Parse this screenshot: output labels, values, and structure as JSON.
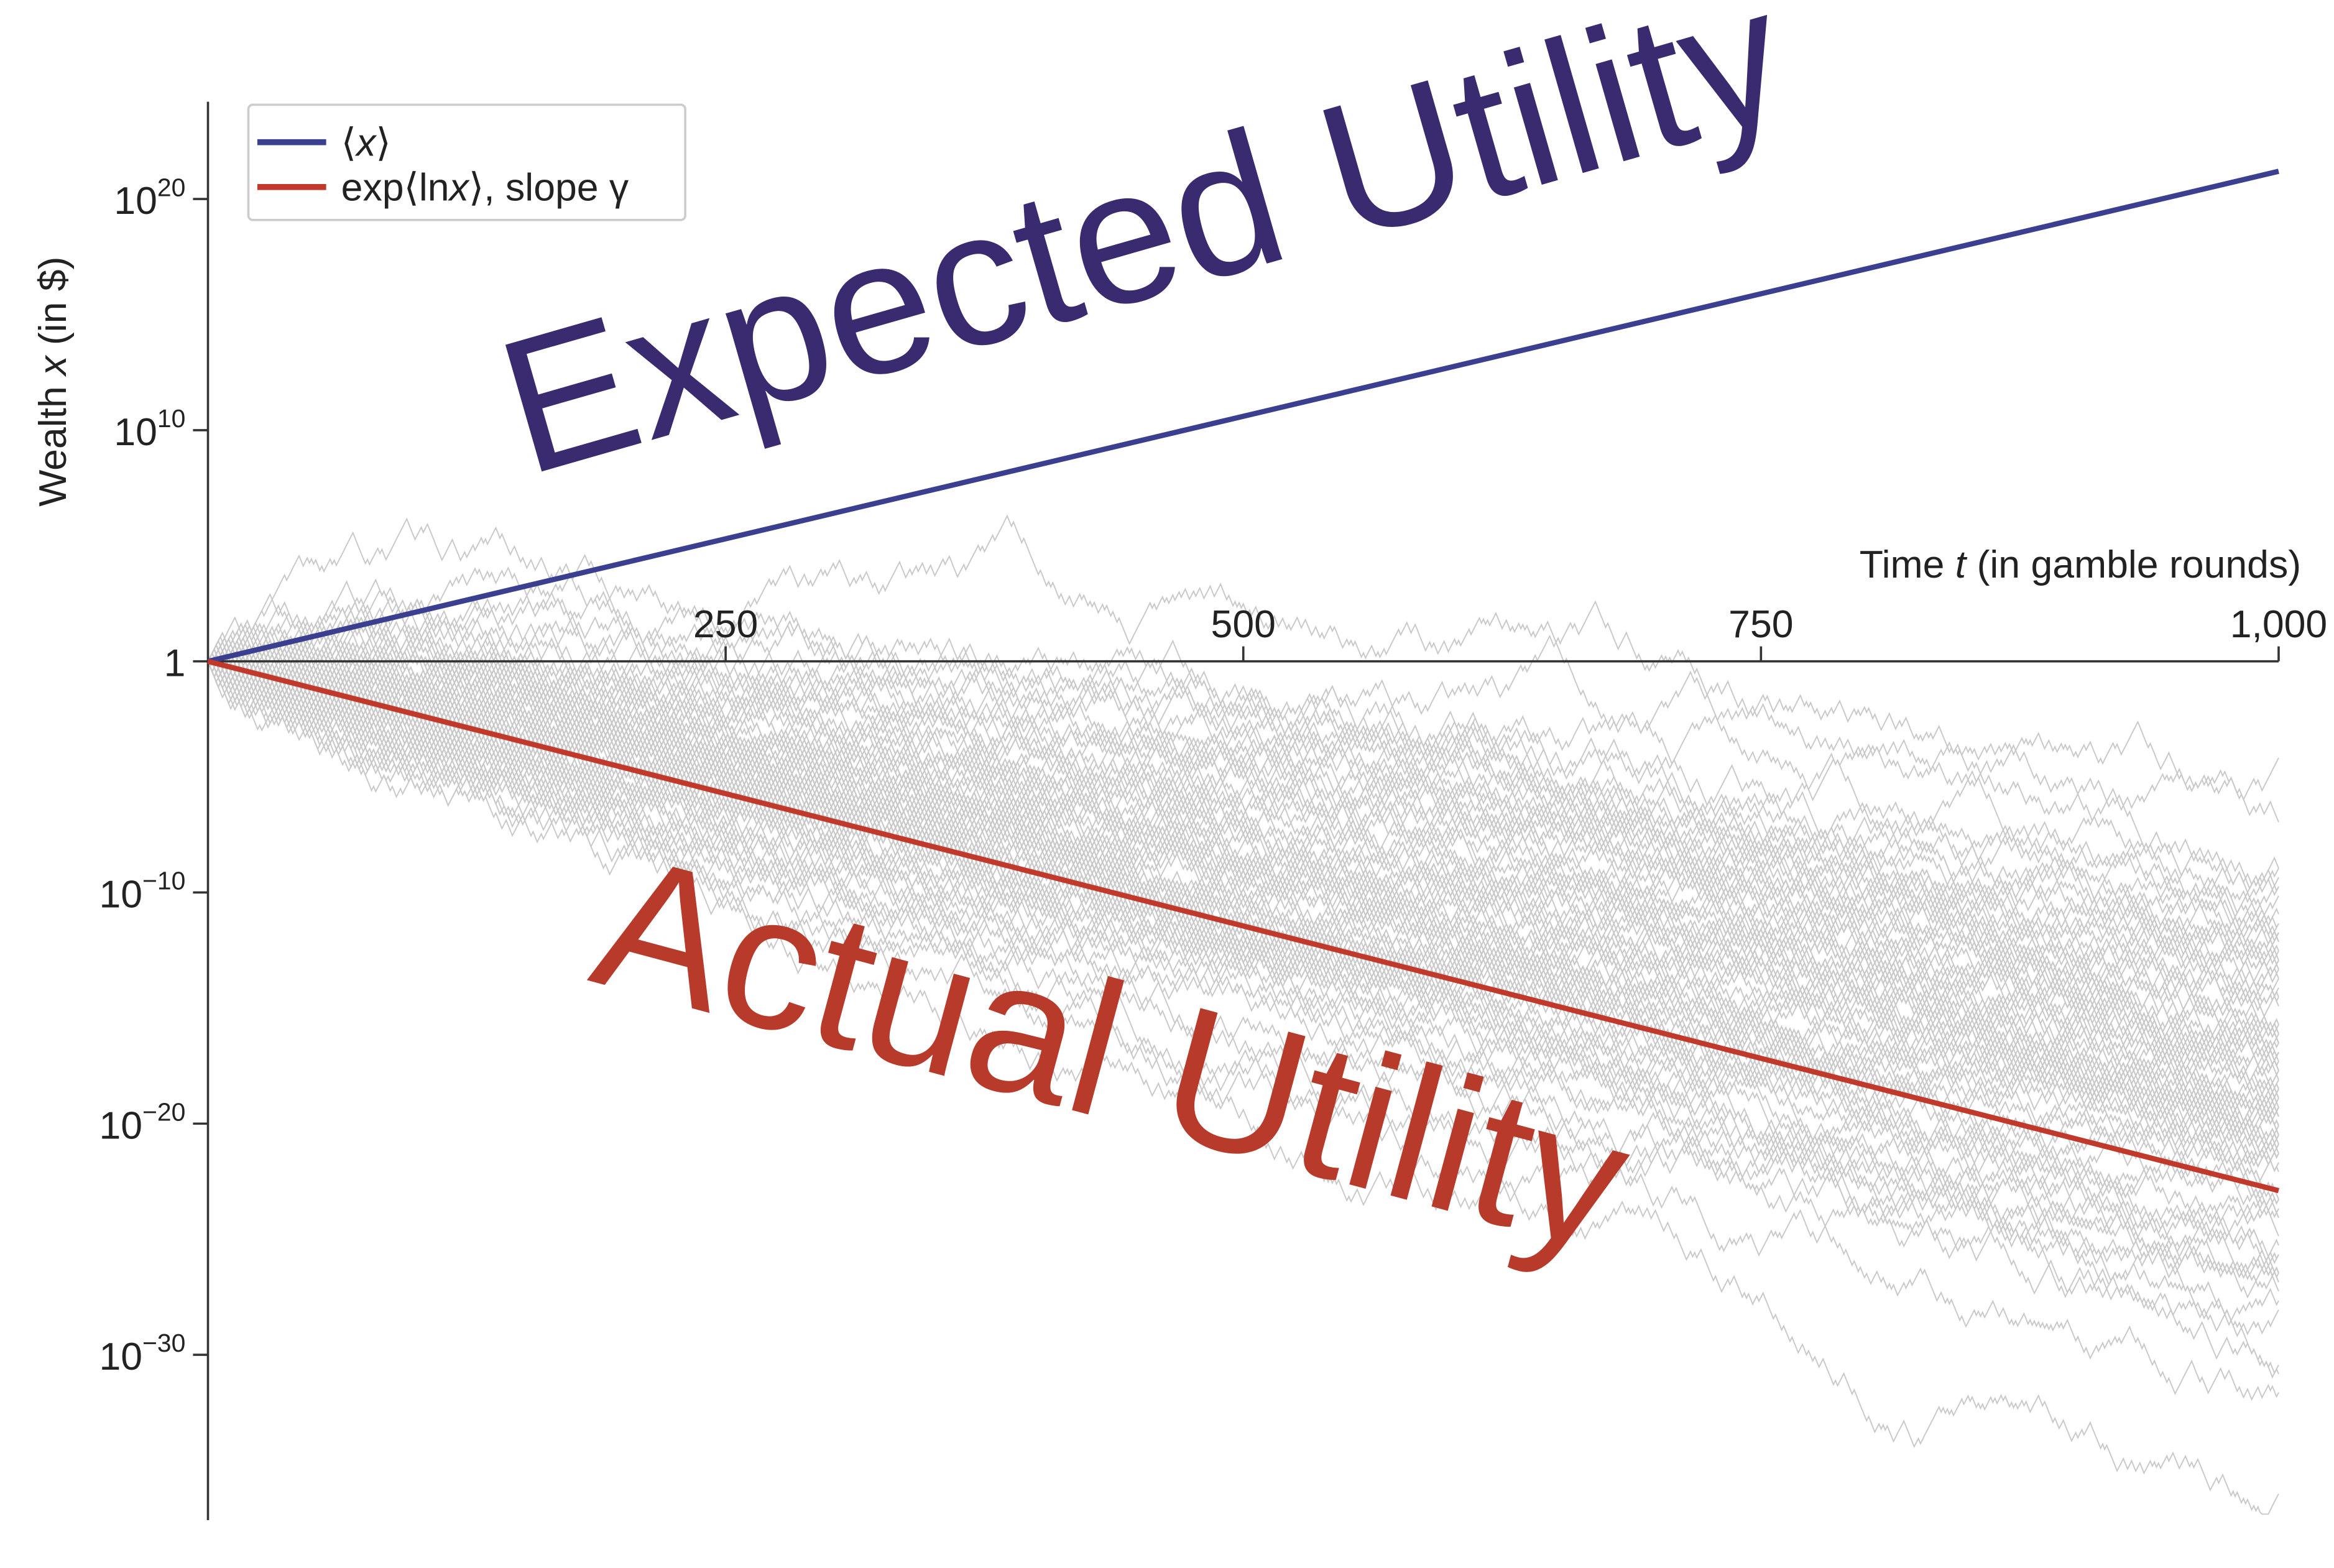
{
  "chart_data": {
    "type": "line",
    "xlabel_prefix": "Time ",
    "xlabel_var": "t",
    "xlabel_suffix": " (in gamble rounds)",
    "ylabel_prefix": "Wealth ",
    "ylabel_var": "x",
    "ylabel_suffix": " (in $)",
    "x_ticks": [
      250,
      500,
      750,
      1000
    ],
    "x_tick_labels": [
      "250",
      "500",
      "750",
      "1,000"
    ],
    "xlim": [
      0,
      1000
    ],
    "y_scale": "log",
    "ylim_log10": [
      -37,
      24
    ],
    "y_ticks_log10": [
      20,
      10,
      0,
      -10,
      -20,
      -30
    ],
    "y_tick_labels": [
      {
        "base": "10",
        "exp": "20"
      },
      {
        "base": "10",
        "exp": "10"
      },
      {
        "base": "1",
        "exp": ""
      },
      {
        "base": "10",
        "exp": "−10"
      },
      {
        "base": "10",
        "exp": "−20"
      },
      {
        "base": "10",
        "exp": "−30"
      }
    ],
    "legend_position": "top-left",
    "series": [
      {
        "name": "⟨x⟩",
        "color": "#3b3f8f",
        "x": [
          0,
          1000
        ],
        "y_log10": [
          0,
          21.2
        ]
      },
      {
        "name": "exp⟨lnx⟩, slope γ",
        "color": "#c0392b",
        "x": [
          0,
          1000
        ],
        "y_log10": [
          0,
          -22.9
        ]
      }
    ],
    "background_trajectories_color": "#c8c8c8"
  },
  "legend": {
    "item1": {
      "pre": "⟨",
      "var": "x",
      "post": "⟩"
    },
    "item2": {
      "pre": "exp⟨ln",
      "var": "x",
      "post": "⟩, slope γ"
    }
  },
  "annotations": {
    "expected": {
      "text": "Expected Utility",
      "color": "#3a2a70"
    },
    "actual": {
      "text": "Actual Utility",
      "color": "#b83a2a"
    }
  }
}
